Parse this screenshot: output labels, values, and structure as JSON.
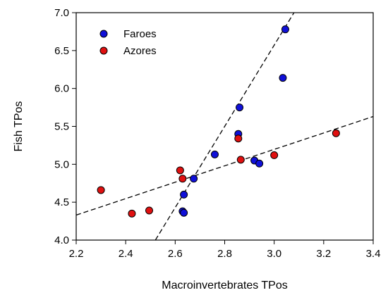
{
  "chart_data": {
    "type": "scatter",
    "xlabel": "Macroinvertebrates TPos",
    "ylabel": "Fish TPos",
    "xlim": [
      2.2,
      3.4
    ],
    "ylim": [
      4.0,
      7.0
    ],
    "x_ticks": [
      "2.2",
      "2.4",
      "2.6",
      "2.8",
      "3.0",
      "3.2",
      "3.4"
    ],
    "y_ticks": [
      "4.0",
      "4.5",
      "5.0",
      "5.5",
      "6.0",
      "6.5",
      "7.0"
    ],
    "grid": false,
    "legend_position": "top-left",
    "series": [
      {
        "name": "Faroes",
        "color": "#1010d8",
        "points": [
          {
            "x": 2.63,
            "y": 4.38
          },
          {
            "x": 2.635,
            "y": 4.36
          },
          {
            "x": 2.635,
            "y": 4.6
          },
          {
            "x": 2.675,
            "y": 4.81
          },
          {
            "x": 2.76,
            "y": 5.13
          },
          {
            "x": 2.855,
            "y": 5.4
          },
          {
            "x": 2.86,
            "y": 5.75
          },
          {
            "x": 2.92,
            "y": 5.05
          },
          {
            "x": 2.94,
            "y": 5.01
          },
          {
            "x": 3.035,
            "y": 6.14
          },
          {
            "x": 3.045,
            "y": 6.78
          }
        ],
        "fit_line": {
          "x": [
            2.52,
            3.08
          ],
          "y": [
            4.0,
            7.0
          ]
        }
      },
      {
        "name": "Azores",
        "color": "#e01010",
        "points": [
          {
            "x": 2.3,
            "y": 4.66
          },
          {
            "x": 2.425,
            "y": 4.35
          },
          {
            "x": 2.495,
            "y": 4.39
          },
          {
            "x": 2.62,
            "y": 4.92
          },
          {
            "x": 2.63,
            "y": 4.81
          },
          {
            "x": 2.855,
            "y": 5.34
          },
          {
            "x": 2.865,
            "y": 5.06
          },
          {
            "x": 3.0,
            "y": 5.12
          },
          {
            "x": 3.25,
            "y": 5.41
          }
        ],
        "fit_line": {
          "x": [
            2.2,
            3.4
          ],
          "y": [
            4.33,
            5.63
          ]
        }
      }
    ]
  }
}
